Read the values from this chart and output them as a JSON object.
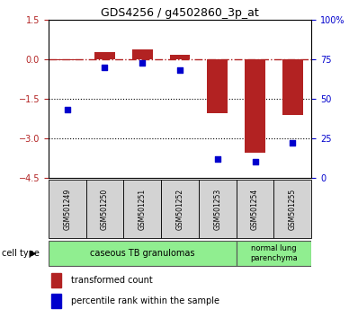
{
  "title": "GDS4256 / g4502860_3p_at",
  "samples": [
    "GSM501249",
    "GSM501250",
    "GSM501251",
    "GSM501252",
    "GSM501253",
    "GSM501254",
    "GSM501255"
  ],
  "transformed_count": [
    -0.02,
    0.28,
    0.38,
    0.18,
    -2.05,
    -3.55,
    -2.1
  ],
  "percentile_rank": [
    43,
    70,
    73,
    68,
    12,
    10,
    22
  ],
  "ylim_left": [
    -4.5,
    1.5
  ],
  "ylim_right": [
    0,
    100
  ],
  "yticks_left": [
    1.5,
    0,
    -1.5,
    -3,
    -4.5
  ],
  "yticks_right": [
    0,
    25,
    50,
    75,
    100
  ],
  "dotted_lines": [
    -1.5,
    -3
  ],
  "bar_color": "#b22222",
  "scatter_color": "#0000cd",
  "group1_label": "caseous TB granulomas",
  "group1_count": 5,
  "group2_label": "normal lung\nparenchyma",
  "group2_count": 2,
  "group_color": "#90ee90",
  "sample_box_color": "#d3d3d3",
  "cell_type_label": "cell type",
  "legend_bar_label": "transformed count",
  "legend_scatter_label": "percentile rank within the sample",
  "bar_width": 0.55
}
